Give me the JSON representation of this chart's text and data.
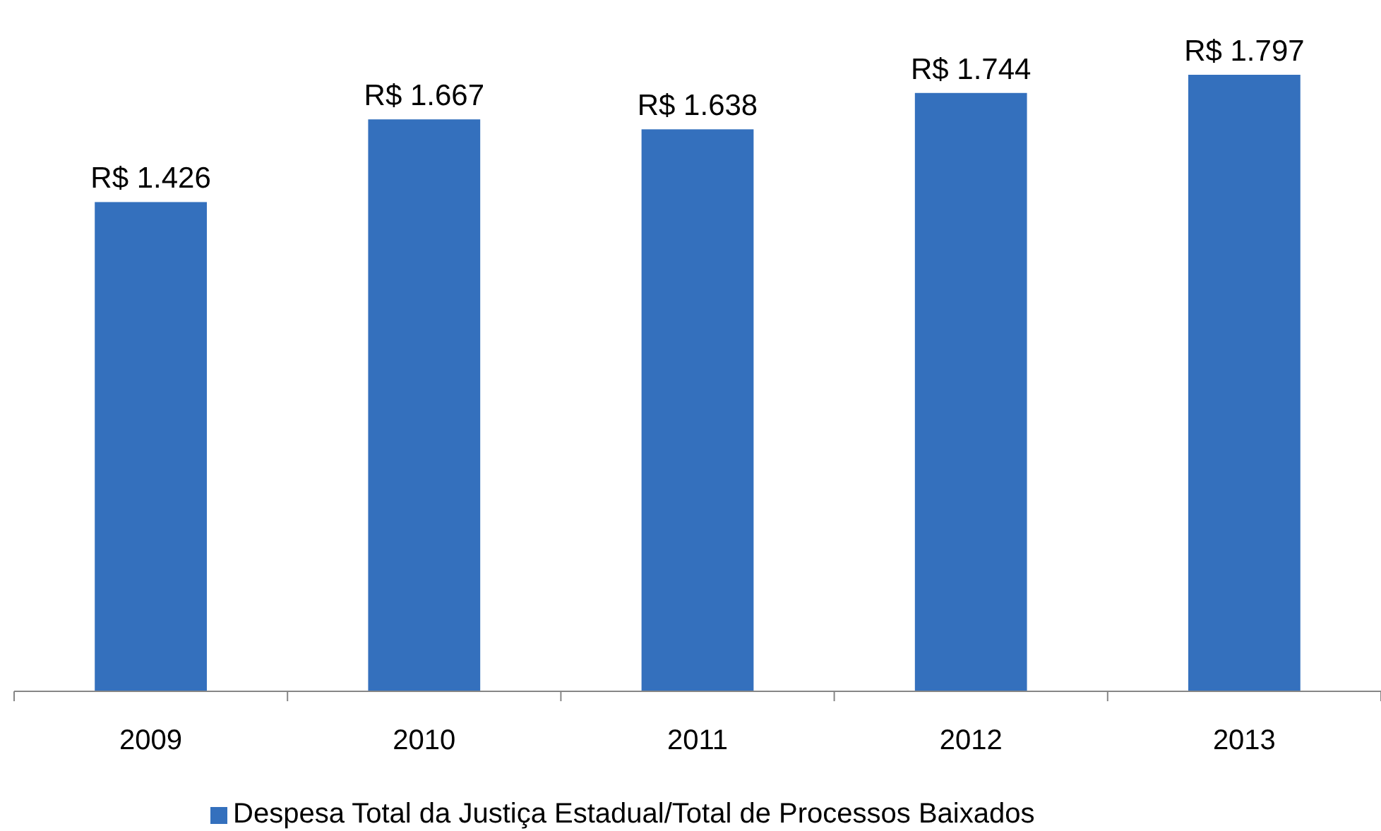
{
  "chart_data": {
    "type": "bar",
    "categories": [
      "2009",
      "2010",
      "2011",
      "2012",
      "2013"
    ],
    "series": [
      {
        "name": "Despesa Total da Justiça Estadual/Total de Processos Baixados",
        "color": "#3470bd",
        "values": [
          1426,
          1667,
          1638,
          1744,
          1797
        ],
        "value_labels": [
          "R$ 1.426",
          "R$ 1.667",
          "R$ 1.638",
          "R$ 1.744",
          "R$ 1.797"
        ]
      }
    ],
    "tick_labels": "x",
    "legend": "bottom"
  }
}
